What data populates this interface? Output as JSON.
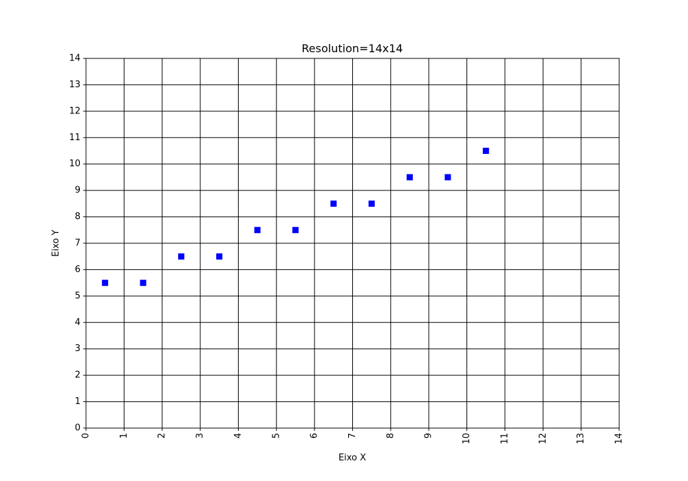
{
  "chart_data": {
    "type": "scatter",
    "title": "Resolution=14x14",
    "xlabel": "Eixo X",
    "ylabel": "Eixo Y",
    "xlim": [
      0,
      14
    ],
    "ylim": [
      0,
      14
    ],
    "x_ticks": [
      "0",
      "1",
      "2",
      "3",
      "4",
      "5",
      "6",
      "7",
      "8",
      "9",
      "10",
      "11",
      "12",
      "13",
      "14"
    ],
    "y_ticks": [
      "0",
      "1",
      "2",
      "3",
      "4",
      "5",
      "6",
      "7",
      "8",
      "9",
      "10",
      "11",
      "12",
      "13",
      "14"
    ],
    "grid": true,
    "marker": "square",
    "marker_color": "#0000ff",
    "points": [
      {
        "x": 0.5,
        "y": 5.5
      },
      {
        "x": 1.5,
        "y": 5.5
      },
      {
        "x": 2.5,
        "y": 6.5
      },
      {
        "x": 3.5,
        "y": 6.5
      },
      {
        "x": 4.5,
        "y": 7.5
      },
      {
        "x": 5.5,
        "y": 7.5
      },
      {
        "x": 6.5,
        "y": 8.5
      },
      {
        "x": 7.5,
        "y": 8.5
      },
      {
        "x": 8.5,
        "y": 9.5
      },
      {
        "x": 9.5,
        "y": 9.5
      },
      {
        "x": 10.5,
        "y": 10.5
      }
    ]
  }
}
